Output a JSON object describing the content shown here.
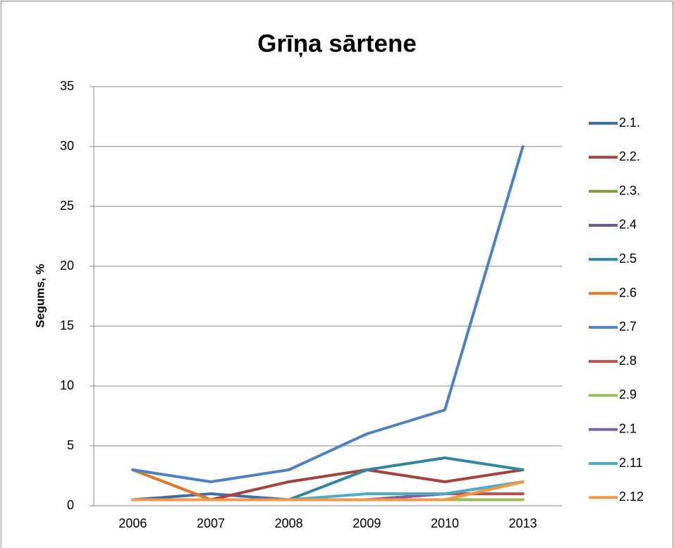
{
  "chart_data": {
    "type": "line",
    "title": "Grīņa sārtene",
    "y_label": "Segums, %",
    "categories": [
      "2006",
      "2007",
      "2008",
      "2009",
      "2010",
      "2013"
    ],
    "ylim": [
      0,
      35
    ],
    "yticks": [
      0,
      5,
      10,
      15,
      20,
      25,
      30,
      35
    ],
    "grid": true,
    "legend": "right",
    "series": [
      {
        "name": "2.1.",
        "color": "#3f6ea6",
        "values": [
          0.5,
          1,
          0.5,
          0.5,
          0.5,
          0.5
        ]
      },
      {
        "name": "2.2.",
        "color": "#a5413e",
        "values": [
          3,
          0.5,
          2,
          3,
          2,
          3
        ]
      },
      {
        "name": "2.3.",
        "color": "#7e9e3e",
        "values": [
          0.5,
          0.5,
          0.5,
          0.5,
          0.5,
          0.5
        ]
      },
      {
        "name": "2.4",
        "color": "#6e548d",
        "values": [
          0.5,
          0.5,
          0.5,
          0.5,
          1,
          1
        ]
      },
      {
        "name": "2.5",
        "color": "#31859c",
        "values": [
          0.5,
          0.5,
          0.5,
          3,
          4,
          3
        ]
      },
      {
        "name": "2.6",
        "color": "#d97a2d",
        "values": [
          3,
          0.5,
          0.5,
          0.5,
          0.5,
          2
        ]
      },
      {
        "name": "2.7",
        "color": "#4f81bd",
        "values": [
          3,
          2,
          3,
          6,
          8,
          30
        ]
      },
      {
        "name": "2.8",
        "color": "#c0504d",
        "values": [
          0.5,
          0.5,
          0.5,
          0.5,
          1,
          1
        ]
      },
      {
        "name": "2.9",
        "color": "#9bbb59",
        "values": [
          0.5,
          0.5,
          0.5,
          0.5,
          0.5,
          0.5
        ]
      },
      {
        "name": "2.1",
        "color": "#8064a2",
        "values": [
          0.5,
          0.5,
          0.5,
          0.5,
          1,
          2
        ]
      },
      {
        "name": "2.11",
        "color": "#4bacc6",
        "values": [
          0.5,
          0.5,
          0.5,
          1,
          1,
          2
        ]
      },
      {
        "name": "2.12",
        "color": "#f79646",
        "values": [
          0.5,
          0.5,
          0.5,
          0.5,
          0.5,
          2
        ]
      }
    ]
  }
}
